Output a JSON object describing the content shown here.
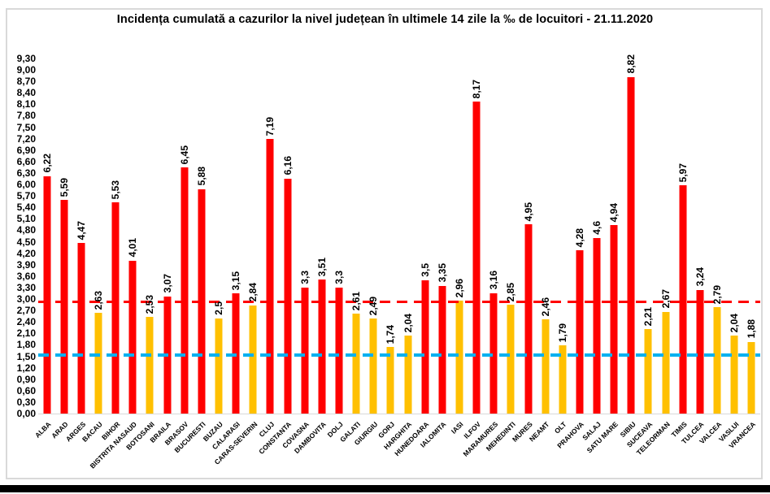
{
  "title": "Incidența cumulată a cazurilor la nivel județean în ultimele 14 zile la ‰ de locuitori - 21.11.2020",
  "chart_data": {
    "type": "bar",
    "title": "Incidența cumulată a cazurilor la nivel județean în ultimele 14 zile la ‰ de locuitori - 21.11.2020",
    "xlabel": "",
    "ylabel": "",
    "ylim": [
      0,
      9.3
    ],
    "ytick_step": 0.3,
    "decimal_separator": ",",
    "grid": false,
    "legend": false,
    "categories": [
      "ALBA",
      "ARAD",
      "ARGES",
      "BACAU",
      "BIHOR",
      "BISTRITA NASAUD",
      "BOTOSANI",
      "BRAILA",
      "BRASOV",
      "BUCURESTI",
      "BUZAU",
      "CALARASI",
      "CARAS-SEVERIN",
      "CLUJ",
      "CONSTANTA",
      "COVASNA",
      "DAMBOVITA",
      "DOLJ",
      "GALATI",
      "GIURGIU",
      "GORJ",
      "HARGHITA",
      "HUNEDOARA",
      "IALOMITA",
      "IASI",
      "ILFOV",
      "MARAMURES",
      "MEHEDINTI",
      "MURES",
      "NEAMT",
      "OLT",
      "PRAHOVA",
      "SALAJ",
      "SATU MARE",
      "SIBIU",
      "SUCEAVA",
      "TELEORMAN",
      "TIMIS",
      "TULCEA",
      "VALCEA",
      "VASLUI",
      "VRANCEA"
    ],
    "values": [
      6.22,
      5.59,
      4.47,
      2.63,
      5.53,
      4.01,
      2.53,
      3.07,
      6.45,
      5.88,
      2.5,
      3.15,
      2.84,
      7.19,
      6.16,
      3.3,
      3.51,
      3.3,
      2.61,
      2.49,
      1.74,
      2.04,
      3.5,
      3.35,
      2.96,
      8.17,
      3.16,
      2.85,
      4.95,
      2.46,
      1.79,
      4.28,
      4.6,
      4.94,
      8.82,
      2.21,
      2.67,
      5.97,
      3.24,
      2.79,
      2.04,
      1.88
    ],
    "color_rule": {
      "red_if_gte": 3,
      "red": "#ff0000",
      "yellow": "#ffc000"
    },
    "reference_lines": [
      {
        "name": "red-threshold-line",
        "value": 2.9,
        "color": "#ff0000",
        "style": "dashed",
        "thickness": 3
      },
      {
        "name": "blue-threshold-line",
        "value": 1.5,
        "color": "#00b0f0",
        "style": "dashed",
        "thickness": 4
      }
    ]
  }
}
